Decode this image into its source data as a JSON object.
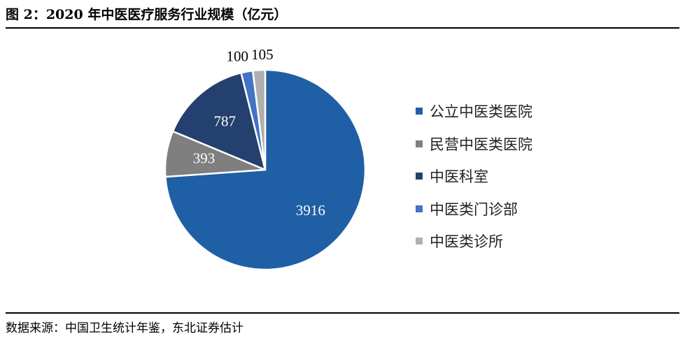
{
  "header": {
    "title": "图 2：2020 年中医医疗服务行业规模（亿元）"
  },
  "footer": {
    "source": "数据来源：中国卫生统计年鉴，东北证券估计"
  },
  "chart_data": {
    "type": "pie",
    "title": "图 2：2020 年中医医疗服务行业规模（亿元）",
    "unit": "亿元",
    "start_angle_deg": 0,
    "direction": "clockwise",
    "legend_position": "right",
    "categories": [
      "公立中医类医院",
      "民营中医类医院",
      "中医科室",
      "中医类门诊部",
      "中医类诊所"
    ],
    "values": [
      3916,
      393,
      787,
      100,
      105
    ],
    "colors": [
      "#1f5fa6",
      "#7f7f7f",
      "#24406e",
      "#4472c4",
      "#b0b0b0"
    ],
    "label_colors": [
      "#ffffff",
      "#ffffff",
      "#ffffff",
      "#000000",
      "#000000"
    ],
    "label_placement": [
      "inside",
      "inside",
      "inside",
      "outside",
      "outside"
    ]
  }
}
